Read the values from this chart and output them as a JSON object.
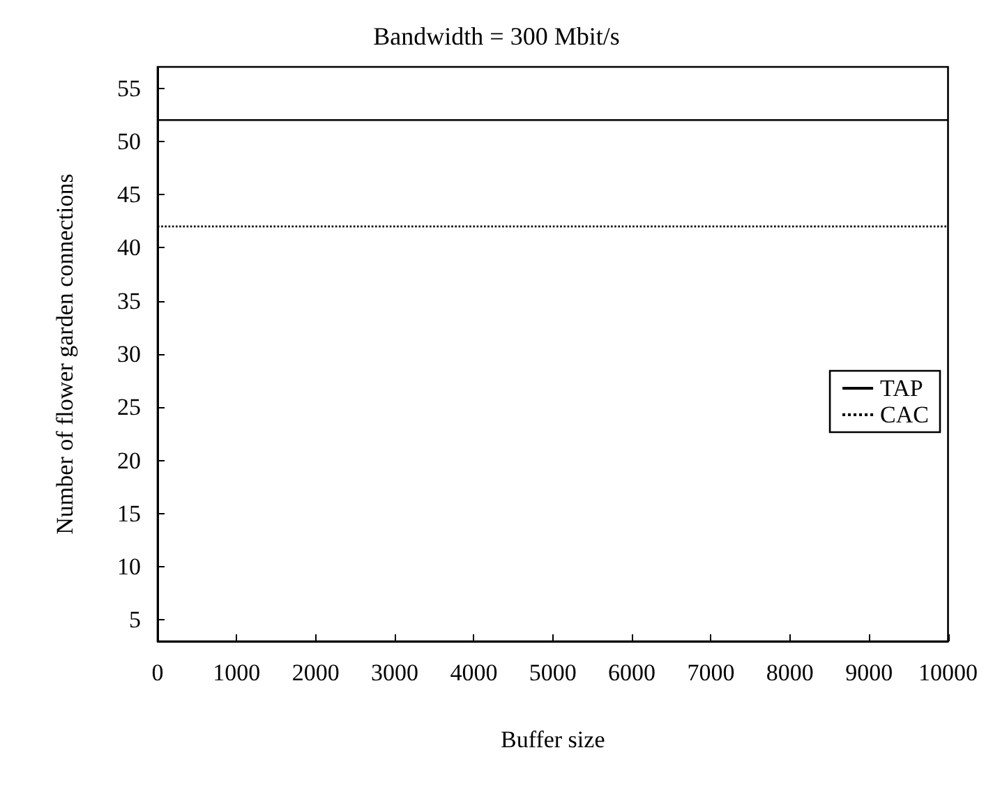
{
  "chart_data": {
    "type": "line",
    "title": "Bandwidth = 300 Mbit/s",
    "xlabel": "Buffer size",
    "ylabel": "Number of flower garden connections",
    "x": [
      0,
      10000
    ],
    "series": [
      {
        "name": "TAP",
        "color": "#000000",
        "values": [
          52,
          52
        ],
        "line_style": "solid"
      },
      {
        "name": "CAC",
        "color": "#000000",
        "values": [
          42,
          42
        ],
        "line_style": "dotted"
      }
    ],
    "xlim": [
      0,
      10000
    ],
    "xticks": [
      0,
      1000,
      2000,
      3000,
      4000,
      5000,
      6000,
      7000,
      8000,
      9000,
      10000
    ],
    "ylim": [
      3,
      57
    ],
    "yticks": [
      5,
      10,
      15,
      20,
      25,
      30,
      35,
      40,
      45,
      50,
      55
    ],
    "grid": false,
    "legend": "right",
    "marker": "none"
  }
}
